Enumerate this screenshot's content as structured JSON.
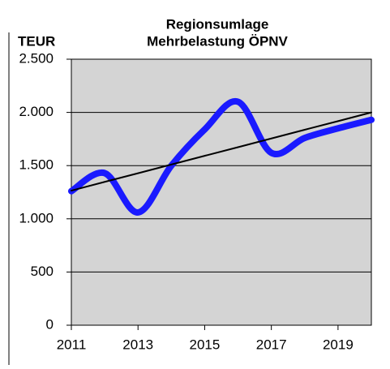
{
  "chart_data": {
    "type": "line",
    "title": [
      "Regionsumlage",
      "Mehrbelastung ÖPNV"
    ],
    "y_label": "TEUR",
    "x": [
      2011,
      2012,
      2013,
      2014,
      2015,
      2016,
      2017,
      2018,
      2019,
      2020
    ],
    "series": [
      {
        "color": "#1a1aff",
        "values": [
          1260,
          1430,
          1060,
          1500,
          1840,
          2100,
          1620,
          1760,
          1850,
          1930
        ],
        "smooth": true
      },
      {
        "color": "#000000",
        "values": [
          1265,
          1347,
          1428,
          1510,
          1592,
          1673,
          1755,
          1837,
          1918,
          2000
        ]
      }
    ],
    "xlim": [
      2011,
      2020
    ],
    "xticks": [
      2011,
      2013,
      2015,
      2017,
      2019
    ],
    "ylim": [
      0,
      2500
    ],
    "yticks": [
      0,
      500,
      {
        "value": 1000,
        "label": "1.000"
      },
      {
        "value": 1500,
        "label": "1.500"
      },
      {
        "value": 2000,
        "label": "2.000"
      },
      {
        "value": 2500,
        "label": "2.500"
      }
    ],
    "grid": true
  }
}
